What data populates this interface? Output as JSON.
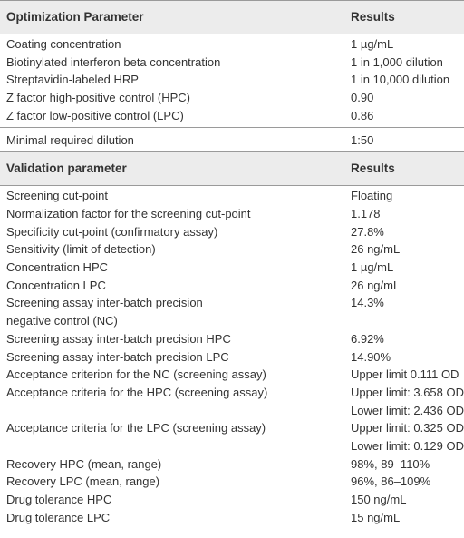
{
  "sections": [
    {
      "header": [
        "Optimization Parameter",
        "Results"
      ],
      "groups": [
        [
          [
            "Coating concentration",
            "1 µg/mL"
          ],
          [
            "Biotinylated interferon beta concentration",
            "1 in 1,000 dilution"
          ],
          [
            "Streptavidin-labeled HRP",
            "1 in 10,000 dilution"
          ],
          [
            "Z factor high-positive control (HPC)",
            "0.90"
          ],
          [
            "Z factor low-positive control (LPC)",
            "0.86"
          ]
        ],
        [
          [
            "Minimal required dilution",
            "1:50"
          ]
        ]
      ]
    },
    {
      "header": [
        "Validation parameter",
        "Results"
      ],
      "groups": [
        [
          [
            "Screening cut-point",
            "Floating"
          ],
          [
            "Normalization factor for the screening cut-point",
            "1.178"
          ],
          [
            "Specificity cut-point (confirmatory assay)",
            "27.8%"
          ],
          [
            "Sensitivity (limit of detection)",
            "26 ng/mL"
          ],
          [
            "Concentration HPC",
            "1 µg/mL"
          ],
          [
            "Concentration LPC",
            "26 ng/mL"
          ],
          [
            [
              "Screening assay inter-batch precision",
              "negative control (NC)"
            ],
            "14.3%"
          ],
          [
            "Screening assay inter-batch precision HPC",
            "6.92%"
          ],
          [
            "Screening assay inter-batch precision LPC",
            "14.90%"
          ],
          [
            "Acceptance criterion for the NC (screening assay)",
            "Upper limit 0.111 OD"
          ],
          [
            "Acceptance criteria for the HPC (screening assay)",
            [
              "Upper limit: 3.658 OD",
              "Lower limit: 2.436 OD"
            ]
          ],
          [
            "Acceptance criteria for the LPC (screening assay)",
            [
              "Upper limit: 0.325 OD",
              "Lower limit: 0.129 OD"
            ]
          ],
          [
            "Recovery HPC (mean, range)",
            "98%, 89–110%"
          ],
          [
            "Recovery LPC (mean, range)",
            "96%, 86–109%"
          ],
          [
            "Drug tolerance HPC",
            "150 ng/mL"
          ],
          [
            "Drug tolerance LPC",
            "15 ng/mL"
          ]
        ]
      ]
    }
  ]
}
